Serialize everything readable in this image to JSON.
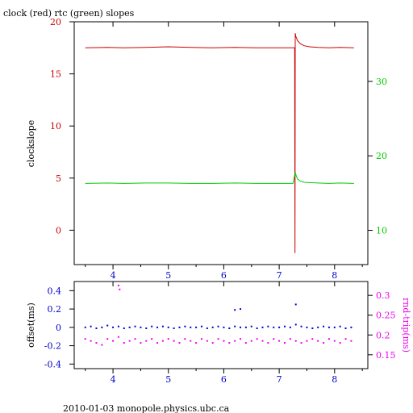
{
  "title": "clock (red) rtc (green) slopes",
  "footer": "2010-01-03 monopole.physics.ubc.ca",
  "colors": {
    "red": "#cc0000",
    "green": "#00cc00",
    "blue": "#0000cc",
    "magenta": "#ee00ee",
    "axis": "#000000"
  },
  "chart_data": [
    {
      "type": "line",
      "panel": "top",
      "ylabel": "clockslope",
      "xlim": [
        3.3,
        8.6
      ],
      "ylim": [
        -3.3,
        20
      ],
      "y2lim": [
        5.4,
        38.0
      ],
      "x_ticks": [
        4,
        5,
        6,
        7,
        8
      ],
      "y_ticks": [
        0,
        5,
        10,
        15,
        20
      ],
      "y2_ticks": [
        10,
        20,
        30
      ],
      "series": [
        {
          "name": "clock",
          "color": "#cc0000",
          "axis": "left",
          "x": [
            3.5,
            3.9,
            4.2,
            4.6,
            5.0,
            5.4,
            5.8,
            6.2,
            6.6,
            6.9,
            7.1,
            7.25,
            7.28,
            7.285,
            7.29,
            7.3,
            7.33,
            7.38,
            7.45,
            7.55,
            7.7,
            7.9,
            8.1,
            8.35
          ],
          "y": [
            17.5,
            17.55,
            17.5,
            17.55,
            17.6,
            17.55,
            17.5,
            17.55,
            17.5,
            17.5,
            17.5,
            17.5,
            17.5,
            -2.2,
            18.9,
            18.6,
            18.2,
            17.9,
            17.7,
            17.6,
            17.55,
            17.5,
            17.55,
            17.5
          ]
        },
        {
          "name": "rtc",
          "color": "#00cc00",
          "axis": "right",
          "x": [
            3.5,
            3.9,
            4.2,
            4.6,
            5.0,
            5.4,
            5.8,
            6.2,
            6.6,
            6.9,
            7.1,
            7.25,
            7.29,
            7.3,
            7.33,
            7.38,
            7.45,
            7.55,
            7.7,
            7.9,
            8.1,
            8.35
          ],
          "y": [
            16.3,
            16.35,
            16.3,
            16.35,
            16.35,
            16.3,
            16.3,
            16.35,
            16.3,
            16.3,
            16.3,
            16.3,
            17.8,
            17.5,
            16.9,
            16.6,
            16.45,
            16.4,
            16.35,
            16.3,
            16.35,
            16.3
          ]
        }
      ]
    },
    {
      "type": "scatter",
      "panel": "bottom",
      "ylabel": "offset(ms)",
      "y2label": "rnd-trip(ms)",
      "xlim": [
        3.3,
        8.6
      ],
      "ylim": [
        -0.45,
        0.5
      ],
      "y2lim": [
        0.115,
        0.335
      ],
      "x_ticks": [
        4,
        5,
        6,
        7,
        8
      ],
      "y_ticks": [
        -0.4,
        -0.2,
        0,
        0.2,
        0.4
      ],
      "y2_ticks": [
        0.15,
        0.2,
        0.25,
        0.3
      ],
      "series": [
        {
          "name": "offset",
          "color": "#0000cc",
          "axis": "left",
          "x": [
            3.5,
            3.6,
            3.7,
            3.8,
            3.9,
            4.0,
            4.1,
            4.2,
            4.3,
            4.4,
            4.5,
            4.6,
            4.7,
            4.8,
            4.9,
            5.0,
            5.1,
            5.2,
            5.3,
            5.4,
            5.5,
            5.6,
            5.7,
            5.8,
            5.9,
            6.0,
            6.1,
            6.2,
            6.3,
            6.4,
            6.5,
            6.6,
            6.7,
            6.8,
            6.9,
            7.0,
            7.1,
            7.2,
            7.3,
            7.4,
            7.5,
            7.6,
            7.7,
            7.8,
            7.9,
            8.0,
            8.1,
            8.2,
            8.3,
            7.3,
            6.2,
            6.3
          ],
          "y": [
            0.0,
            0.01,
            -0.01,
            0.0,
            0.02,
            0.0,
            0.01,
            -0.01,
            0.0,
            0.01,
            0.0,
            -0.01,
            0.01,
            0.0,
            0.01,
            0.0,
            -0.01,
            0.0,
            0.01,
            0.0,
            0.0,
            0.01,
            -0.01,
            0.0,
            0.01,
            0.0,
            -0.01,
            0.01,
            0.0,
            0.0,
            0.01,
            -0.01,
            0.0,
            0.01,
            0.0,
            0.0,
            0.01,
            0.0,
            0.03,
            0.01,
            0.0,
            -0.01,
            0.0,
            0.01,
            0.0,
            0.0,
            0.01,
            -0.01,
            0.0,
            0.25,
            0.19,
            0.2
          ]
        },
        {
          "name": "rnd-trip",
          "color": "#ee00ee",
          "axis": "right",
          "x": [
            3.5,
            3.6,
            3.7,
            3.8,
            3.9,
            4.0,
            4.1,
            4.2,
            4.3,
            4.4,
            4.5,
            4.6,
            4.7,
            4.8,
            4.9,
            5.0,
            5.1,
            5.2,
            5.3,
            5.4,
            5.5,
            5.6,
            5.7,
            5.8,
            5.9,
            6.0,
            6.1,
            6.2,
            6.3,
            6.4,
            6.5,
            6.6,
            6.7,
            6.8,
            6.9,
            7.0,
            7.1,
            7.2,
            7.3,
            7.4,
            7.5,
            7.6,
            7.7,
            7.8,
            7.9,
            8.0,
            8.1,
            8.2,
            8.3,
            4.1,
            4.12
          ],
          "y": [
            0.19,
            0.185,
            0.18,
            0.175,
            0.19,
            0.185,
            0.195,
            0.18,
            0.185,
            0.19,
            0.18,
            0.185,
            0.19,
            0.18,
            0.185,
            0.19,
            0.185,
            0.18,
            0.19,
            0.185,
            0.18,
            0.19,
            0.185,
            0.18,
            0.19,
            0.185,
            0.18,
            0.185,
            0.19,
            0.18,
            0.185,
            0.19,
            0.185,
            0.18,
            0.19,
            0.185,
            0.18,
            0.19,
            0.185,
            0.18,
            0.185,
            0.19,
            0.185,
            0.18,
            0.19,
            0.185,
            0.18,
            0.19,
            0.185,
            0.325,
            0.315
          ]
        }
      ]
    }
  ]
}
